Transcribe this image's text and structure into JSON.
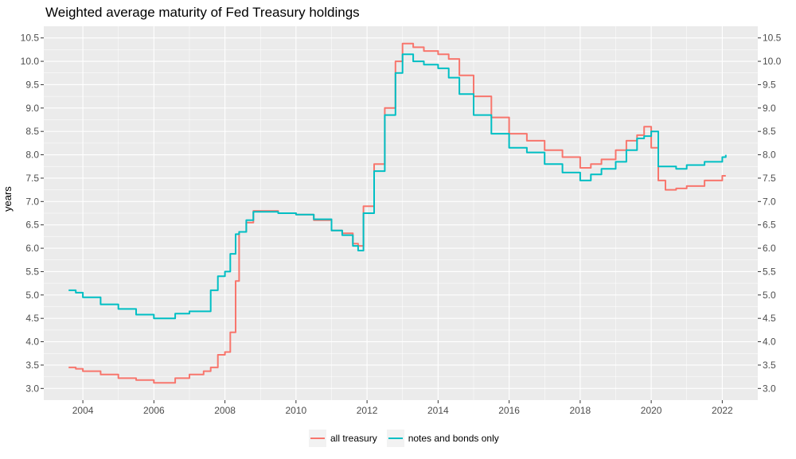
{
  "chart_data": {
    "type": "line",
    "title": "Weighted average maturity of Fed Treasury holdings",
    "xlabel": "",
    "ylabel": "years",
    "xlim": [
      2002.9,
      2023.0
    ],
    "ylim": [
      2.75,
      10.75
    ],
    "x_ticks": [
      "2004",
      "2006",
      "2008",
      "2010",
      "2012",
      "2014",
      "2016",
      "2018",
      "2020",
      "2022"
    ],
    "y_ticks": [
      "3.0",
      "3.5",
      "4.0",
      "4.5",
      "5.0",
      "5.5",
      "6.0",
      "6.5",
      "7.0",
      "7.5",
      "8.0",
      "8.5",
      "9.0",
      "9.5",
      "10.0",
      "10.5"
    ],
    "secondary_y_axis": "duplicate",
    "grid": true,
    "legend_position": "bottom",
    "series": [
      {
        "name": "all treasury",
        "color": "#F8766D",
        "x": [
          2003.6,
          2003.8,
          2004.0,
          2004.5,
          2005.0,
          2005.5,
          2006.0,
          2006.3,
          2006.6,
          2007.0,
          2007.4,
          2007.6,
          2007.8,
          2008.0,
          2008.15,
          2008.3,
          2008.4,
          2008.6,
          2008.8,
          2009.0,
          2009.5,
          2010.0,
          2010.5,
          2011.0,
          2011.3,
          2011.6,
          2011.75,
          2011.9,
          2012.2,
          2012.5,
          2012.8,
          2013.0,
          2013.3,
          2013.6,
          2014.0,
          2014.3,
          2014.6,
          2015.0,
          2015.5,
          2016.0,
          2016.5,
          2017.0,
          2017.5,
          2018.0,
          2018.3,
          2018.6,
          2019.0,
          2019.3,
          2019.6,
          2019.8,
          2020.0,
          2020.2,
          2020.4,
          2020.7,
          2021.0,
          2021.5,
          2022.0,
          2022.1
        ],
        "values": [
          3.45,
          3.42,
          3.37,
          3.3,
          3.22,
          3.18,
          3.12,
          3.12,
          3.22,
          3.3,
          3.37,
          3.45,
          3.72,
          3.78,
          4.2,
          5.3,
          6.35,
          6.55,
          6.8,
          6.8,
          6.75,
          6.72,
          6.6,
          6.38,
          6.32,
          6.1,
          6.05,
          6.9,
          7.8,
          9.0,
          10.0,
          10.38,
          10.3,
          10.22,
          10.15,
          10.05,
          9.7,
          9.25,
          8.8,
          8.45,
          8.3,
          8.1,
          7.95,
          7.72,
          7.8,
          7.9,
          8.1,
          8.3,
          8.42,
          8.6,
          8.15,
          7.45,
          7.25,
          7.28,
          7.33,
          7.45,
          7.55,
          7.55
        ]
      },
      {
        "name": "notes and bonds only",
        "color": "#00BFC4",
        "x": [
          2003.6,
          2003.8,
          2004.0,
          2004.5,
          2005.0,
          2005.5,
          2006.0,
          2006.3,
          2006.6,
          2007.0,
          2007.4,
          2007.6,
          2007.8,
          2008.0,
          2008.15,
          2008.3,
          2008.4,
          2008.6,
          2008.8,
          2009.0,
          2009.5,
          2010.0,
          2010.5,
          2011.0,
          2011.3,
          2011.6,
          2011.75,
          2011.9,
          2012.2,
          2012.5,
          2012.8,
          2013.0,
          2013.3,
          2013.6,
          2014.0,
          2014.3,
          2014.6,
          2015.0,
          2015.5,
          2016.0,
          2016.5,
          2017.0,
          2017.5,
          2018.0,
          2018.3,
          2018.6,
          2019.0,
          2019.3,
          2019.6,
          2019.8,
          2020.0,
          2020.2,
          2020.4,
          2020.7,
          2021.0,
          2021.5,
          2022.0,
          2022.1
        ],
        "values": [
          5.1,
          5.05,
          4.95,
          4.8,
          4.7,
          4.58,
          4.5,
          4.5,
          4.6,
          4.65,
          4.65,
          5.1,
          5.4,
          5.5,
          5.88,
          6.3,
          6.35,
          6.6,
          6.78,
          6.78,
          6.75,
          6.72,
          6.62,
          6.38,
          6.28,
          6.05,
          5.95,
          6.75,
          7.65,
          8.85,
          9.75,
          10.15,
          10.0,
          9.93,
          9.85,
          9.65,
          9.3,
          8.85,
          8.45,
          8.15,
          8.05,
          7.8,
          7.62,
          7.45,
          7.58,
          7.7,
          7.85,
          8.1,
          8.35,
          8.4,
          8.5,
          7.75,
          7.75,
          7.7,
          7.78,
          7.85,
          7.95,
          8.0
        ]
      }
    ]
  }
}
